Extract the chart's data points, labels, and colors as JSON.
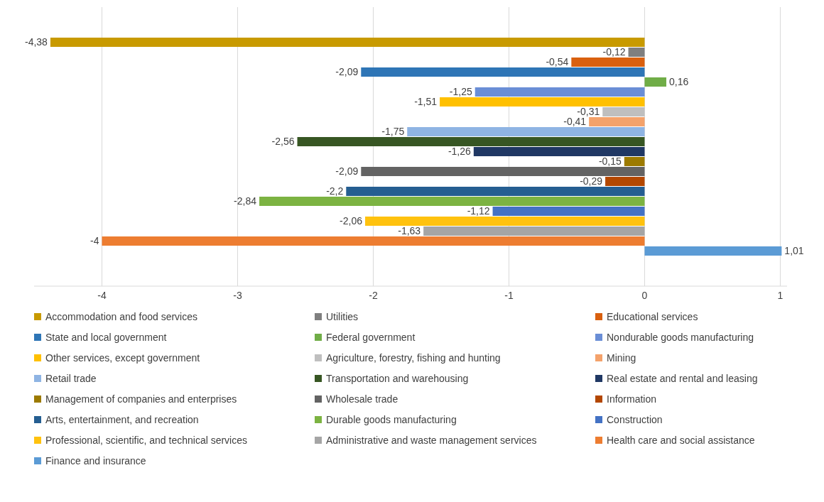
{
  "chart_data": {
    "type": "bar",
    "orientation": "horizontal",
    "categories": [
      null
    ],
    "xlim": [
      -4.5,
      1.05
    ],
    "xticks": [
      -4,
      -3,
      -2,
      -1,
      0,
      1
    ],
    "grid": "x",
    "legend": "bottom",
    "series": [
      {
        "name": "Accommodation and food services",
        "color": "#c89a00",
        "values": [
          -4.38
        ],
        "value_labels": [
          "-4,38"
        ]
      },
      {
        "name": "Utilities",
        "color": "#7f7f7f",
        "values": [
          -0.12
        ],
        "value_labels": [
          "-0,12"
        ]
      },
      {
        "name": "Educational services",
        "color": "#d9600f",
        "values": [
          -0.54
        ],
        "value_labels": [
          "-0,54"
        ]
      },
      {
        "name": "State and local government",
        "color": "#2e75b6",
        "values": [
          -2.09
        ],
        "value_labels": [
          "-2,09"
        ]
      },
      {
        "name": "Federal government",
        "color": "#70ad47",
        "values": [
          0.16
        ],
        "value_labels": [
          "0,16"
        ]
      },
      {
        "name": "Nondurable goods manufacturing",
        "color": "#6a8ed6",
        "values": [
          -1.25
        ],
        "value_labels": [
          "-1,25"
        ]
      },
      {
        "name": "Other services, except government",
        "color": "#ffc000",
        "values": [
          -1.51
        ],
        "value_labels": [
          "-1,51"
        ]
      },
      {
        "name": "Agriculture, forestry, fishing and hunting",
        "color": "#bfbfbf",
        "values": [
          -0.31
        ],
        "value_labels": [
          "-0,31"
        ]
      },
      {
        "name": "Mining",
        "color": "#f4a26b",
        "values": [
          -0.41
        ],
        "value_labels": [
          "-0,41"
        ]
      },
      {
        "name": "Retail trade",
        "color": "#8fb4e3",
        "values": [
          -1.75
        ],
        "value_labels": [
          "-1,75"
        ]
      },
      {
        "name": "Transportation and warehousing",
        "color": "#375623",
        "values": [
          -2.56
        ],
        "value_labels": [
          "-2,56"
        ]
      },
      {
        "name": "Real estate and rental and leasing",
        "color": "#203864",
        "values": [
          -1.26
        ],
        "value_labels": [
          "-1,26"
        ]
      },
      {
        "name": "Management of companies and enterprises",
        "color": "#9c7a00",
        "values": [
          -0.15
        ],
        "value_labels": [
          "-0,15"
        ]
      },
      {
        "name": "Wholesale trade",
        "color": "#636363",
        "values": [
          -2.09
        ],
        "value_labels": [
          "-2,09"
        ]
      },
      {
        "name": "Information",
        "color": "#b34700",
        "values": [
          -0.29
        ],
        "value_labels": [
          "-0,29"
        ]
      },
      {
        "name": "Arts, entertainment, and recreation",
        "color": "#255e91",
        "values": [
          -2.2
        ],
        "value_labels": [
          "-2,2"
        ]
      },
      {
        "name": "Durable goods manufacturing",
        "color": "#7cb342",
        "values": [
          -2.84
        ],
        "value_labels": [
          "-2,84"
        ]
      },
      {
        "name": "Construction",
        "color": "#4472c4",
        "values": [
          -1.12
        ],
        "value_labels": [
          "-1,12"
        ]
      },
      {
        "name": "Professional, scientific, and technical services",
        "color": "#ffc20e",
        "values": [
          -2.06
        ],
        "value_labels": [
          "-2,06"
        ]
      },
      {
        "name": "Administrative and waste management services",
        "color": "#a5a5a5",
        "values": [
          -1.63
        ],
        "value_labels": [
          "-1,63"
        ]
      },
      {
        "name": "Health care and social assistance",
        "color": "#ed7d31",
        "values": [
          -4
        ],
        "value_labels": [
          "-4"
        ]
      },
      {
        "name": "Finance and insurance",
        "color": "#5b9bd5",
        "values": [
          1.01
        ],
        "value_labels": [
          "1,01"
        ]
      }
    ]
  }
}
